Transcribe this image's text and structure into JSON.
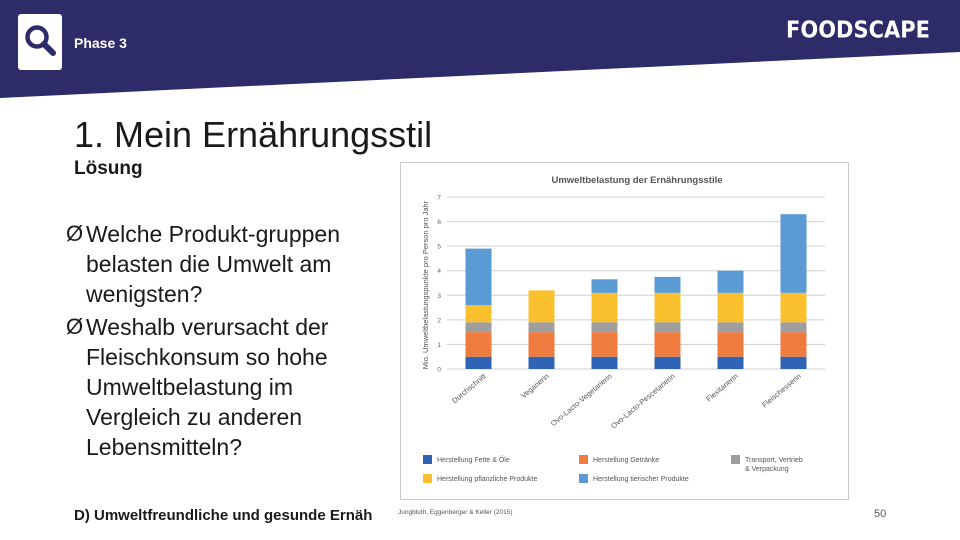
{
  "header": {
    "phase": "Phase 3",
    "logo": "FOODSCAPE",
    "bg_color": "#2e2b69"
  },
  "slide": {
    "title": "1. Mein Ernährungsstil",
    "subtitle": "Lösung",
    "bullets": [
      {
        "arrow": "Ø",
        "text": "Welche Produkt-gruppen belasten die Umwelt am wenigsten?"
      },
      {
        "arrow": "Ø",
        "text": "Weshalb verursacht der Fleischkonsum so hohe Umweltbelastung im Vergleich zu anderen Lebensmitteln?"
      }
    ],
    "footer": "D) Umweltfreundliche und gesunde Ernäh",
    "source": "Jungbluth, Eggenberger & Keller (2015)",
    "page_number": "50"
  },
  "chart_data": {
    "type": "bar",
    "stacked": true,
    "title": "Umweltbelastung der Ernährungsstile",
    "ylabel": "Mio. Umweltbelastungspunkte pro Person pro Jahr",
    "xlabel": "",
    "ylim": [
      0,
      7
    ],
    "yticks": [
      "0",
      "1",
      "2",
      "3",
      "4",
      "5",
      "6",
      "7"
    ],
    "grid": true,
    "categories": [
      "Durchschnitt",
      "Veganerin",
      "Ovo-Lacto-Vegetarierin",
      "Ovo-Lacto-Pescetarierin",
      "Flexitarierin",
      "Fleischesserin"
    ],
    "series": [
      {
        "name": "Herstellung Fette & Öle",
        "color": "#2e63b5",
        "values": [
          0.5,
          0.5,
          0.5,
          0.5,
          0.5,
          0.5
        ]
      },
      {
        "name": "Herstellung Getränke",
        "color": "#f07b3f",
        "values": [
          1.0,
          1.0,
          1.0,
          1.0,
          1.0,
          1.0
        ]
      },
      {
        "name": "Transport, Vertrieb & Verpackung",
        "color": "#9e9e9e",
        "values": [
          0.4,
          0.4,
          0.4,
          0.4,
          0.4,
          0.4
        ]
      },
      {
        "name": "Herstellung pflanzliche Produkte",
        "color": "#fbc02d",
        "values": [
          0.7,
          1.3,
          1.2,
          1.2,
          1.2,
          1.2
        ]
      },
      {
        "name": "Herstellung tierischer Produkte",
        "color": "#5b9bd5",
        "values": [
          2.3,
          0.0,
          0.55,
          0.65,
          0.9,
          3.2
        ]
      }
    ],
    "legend": [
      {
        "label": "Herstellung Fette & Öle",
        "color": "#2e63b5"
      },
      {
        "label": "Herstellung Getränke",
        "color": "#f07b3f"
      },
      {
        "label": "Transport, Vertrieb & Verpackung",
        "color": "#9e9e9e"
      },
      {
        "label": "Herstellung pflanzliche Produkte",
        "color": "#fbc02d"
      },
      {
        "label": "Herstellung tierischer Produkte",
        "color": "#5b9bd5"
      }
    ]
  }
}
